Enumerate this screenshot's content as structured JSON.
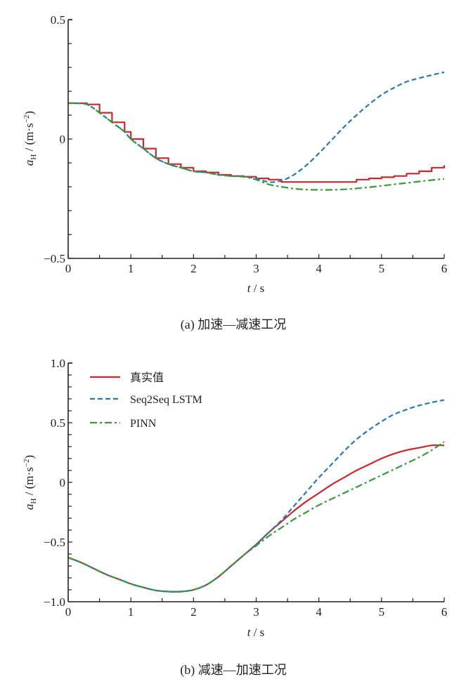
{
  "colors": {
    "true_value": "#c8282e",
    "seq2seq": "#2a78b0",
    "pinn": "#3a9a3a",
    "axis": "#231f20"
  },
  "legend": [
    "真实值",
    "Seq2Seq LSTM",
    "PINN"
  ],
  "chart_data": [
    {
      "type": "line",
      "caption": "(a)  加速—减速工况",
      "xlabel_var": "t",
      "xlabel_unit": " / s",
      "ylabel_var": "a",
      "ylabel_sub": "H",
      "ylabel_unit": " / (m·s",
      "ylabel_exp": "−2",
      "ylabel_close": ")",
      "xlim": [
        0,
        6
      ],
      "ylim": [
        -0.5,
        0.5
      ],
      "xticks": [
        0,
        1,
        2,
        3,
        4,
        5,
        6
      ],
      "xtick_labels": [
        "0",
        "1",
        "2",
        "3",
        "4",
        "5",
        "6"
      ],
      "yticks": [
        -0.5,
        0,
        0.5
      ],
      "ytick_labels": [
        "−0.5",
        "0",
        "0.5"
      ],
      "y_minor_step": 0.1,
      "x_minor_step": 0.5,
      "grid": false,
      "series": [
        {
          "name": "真实值",
          "style": "solid",
          "x": [
            0,
            0.1,
            0.3,
            0.5,
            0.7,
            0.9,
            1.0,
            1.2,
            1.4,
            1.6,
            1.8,
            2.0,
            2.2,
            2.4,
            2.6,
            2.8,
            3.0,
            3.2,
            3.4,
            3.6,
            3.8,
            4.0,
            4.2,
            4.4,
            4.6,
            4.8,
            5.0,
            5.2,
            5.4,
            5.6,
            5.8,
            6.0
          ],
          "y": [
            0.15,
            0.15,
            0.145,
            0.11,
            0.07,
            0.03,
            0.0,
            -0.04,
            -0.08,
            -0.105,
            -0.12,
            -0.135,
            -0.14,
            -0.15,
            -0.155,
            -0.158,
            -0.165,
            -0.17,
            -0.18,
            -0.18,
            -0.18,
            -0.18,
            -0.18,
            -0.18,
            -0.17,
            -0.165,
            -0.16,
            -0.155,
            -0.145,
            -0.135,
            -0.12,
            -0.11
          ]
        },
        {
          "name": "Seq2Seq LSTM",
          "style": "dashed",
          "x": [
            0,
            0.1,
            0.3,
            0.5,
            0.7,
            0.9,
            1.0,
            1.2,
            1.4,
            1.6,
            1.8,
            2.0,
            2.2,
            2.4,
            2.6,
            2.8,
            3.0,
            3.2,
            3.4,
            3.6,
            3.8,
            4.0,
            4.2,
            4.4,
            4.6,
            4.8,
            5.0,
            5.2,
            5.4,
            5.6,
            5.8,
            6.0
          ],
          "y": [
            0.15,
            0.15,
            0.145,
            0.11,
            0.07,
            0.03,
            0.0,
            -0.04,
            -0.08,
            -0.105,
            -0.12,
            -0.135,
            -0.14,
            -0.15,
            -0.155,
            -0.158,
            -0.165,
            -0.18,
            -0.175,
            -0.15,
            -0.11,
            -0.06,
            -0.005,
            0.05,
            0.1,
            0.145,
            0.185,
            0.215,
            0.24,
            0.255,
            0.268,
            0.28
          ]
        },
        {
          "name": "PINN",
          "style": "dashdot",
          "x": [
            0,
            0.1,
            0.3,
            0.5,
            0.7,
            0.9,
            1.0,
            1.2,
            1.4,
            1.6,
            1.8,
            2.0,
            2.2,
            2.4,
            2.6,
            2.8,
            3.0,
            3.2,
            3.4,
            3.6,
            3.8,
            4.0,
            4.2,
            4.4,
            4.6,
            4.8,
            5.0,
            5.2,
            5.4,
            5.6,
            5.8,
            6.0
          ],
          "y": [
            0.15,
            0.15,
            0.145,
            0.11,
            0.07,
            0.03,
            0.0,
            -0.04,
            -0.08,
            -0.105,
            -0.12,
            -0.135,
            -0.14,
            -0.15,
            -0.155,
            -0.158,
            -0.17,
            -0.19,
            -0.2,
            -0.208,
            -0.212,
            -0.213,
            -0.213,
            -0.211,
            -0.207,
            -0.202,
            -0.196,
            -0.19,
            -0.184,
            -0.178,
            -0.172,
            -0.167
          ]
        }
      ]
    },
    {
      "type": "line",
      "caption": "(b)  减速—加速工况",
      "xlabel_var": "t",
      "xlabel_unit": " / s",
      "ylabel_var": "a",
      "ylabel_sub": "H",
      "ylabel_unit": " / (m·s",
      "ylabel_exp": "−2",
      "ylabel_close": ")",
      "xlim": [
        0,
        6
      ],
      "ylim": [
        -1.0,
        1.0
      ],
      "xticks": [
        0,
        1,
        2,
        3,
        4,
        5,
        6
      ],
      "xtick_labels": [
        "0",
        "1",
        "2",
        "3",
        "4",
        "5",
        "6"
      ],
      "yticks": [
        -1.0,
        -0.5,
        0,
        0.5,
        1.0
      ],
      "ytick_labels": [
        "−1.0",
        "−0.5",
        "0",
        "0.5",
        "1.0"
      ],
      "y_minor_step": 0.1,
      "x_minor_step": 0.5,
      "grid": false,
      "legend_position": "top-left",
      "series": [
        {
          "name": "真实值",
          "style": "solid",
          "x": [
            0,
            0.2,
            0.4,
            0.6,
            0.8,
            1.0,
            1.2,
            1.4,
            1.6,
            1.8,
            2.0,
            2.2,
            2.4,
            2.6,
            2.8,
            3.0,
            3.2,
            3.4,
            3.6,
            3.8,
            4.0,
            4.2,
            4.4,
            4.6,
            4.8,
            5.0,
            5.2,
            5.4,
            5.6,
            5.8,
            6.0
          ],
          "y": [
            -0.63,
            -0.67,
            -0.72,
            -0.77,
            -0.81,
            -0.85,
            -0.88,
            -0.905,
            -0.915,
            -0.915,
            -0.9,
            -0.86,
            -0.79,
            -0.7,
            -0.61,
            -0.52,
            -0.42,
            -0.33,
            -0.24,
            -0.16,
            -0.09,
            -0.02,
            0.04,
            0.1,
            0.15,
            0.2,
            0.24,
            0.27,
            0.29,
            0.31,
            0.31
          ]
        },
        {
          "name": "Seq2Seq LSTM",
          "style": "dashed",
          "x": [
            0,
            0.2,
            0.4,
            0.6,
            0.8,
            1.0,
            1.2,
            1.4,
            1.6,
            1.8,
            2.0,
            2.2,
            2.4,
            2.6,
            2.8,
            3.0,
            3.2,
            3.4,
            3.6,
            3.8,
            4.0,
            4.2,
            4.4,
            4.6,
            4.8,
            5.0,
            5.2,
            5.4,
            5.6,
            5.8,
            6.0
          ],
          "y": [
            -0.63,
            -0.67,
            -0.72,
            -0.77,
            -0.81,
            -0.85,
            -0.88,
            -0.905,
            -0.915,
            -0.915,
            -0.9,
            -0.86,
            -0.79,
            -0.7,
            -0.61,
            -0.52,
            -0.42,
            -0.32,
            -0.2,
            -0.08,
            0.04,
            0.15,
            0.26,
            0.36,
            0.44,
            0.51,
            0.57,
            0.61,
            0.645,
            0.67,
            0.69
          ]
        },
        {
          "name": "PINN",
          "style": "dashdot",
          "x": [
            0,
            0.2,
            0.4,
            0.6,
            0.8,
            1.0,
            1.2,
            1.4,
            1.6,
            1.8,
            2.0,
            2.2,
            2.4,
            2.6,
            2.8,
            3.0,
            3.2,
            3.4,
            3.6,
            3.8,
            4.0,
            4.2,
            4.4,
            4.6,
            4.8,
            5.0,
            5.2,
            5.4,
            5.6,
            5.8,
            6.0
          ],
          "y": [
            -0.63,
            -0.67,
            -0.72,
            -0.77,
            -0.81,
            -0.85,
            -0.88,
            -0.905,
            -0.915,
            -0.915,
            -0.9,
            -0.86,
            -0.79,
            -0.7,
            -0.61,
            -0.53,
            -0.45,
            -0.38,
            -0.31,
            -0.25,
            -0.19,
            -0.14,
            -0.09,
            -0.04,
            0.01,
            0.06,
            0.11,
            0.16,
            0.21,
            0.27,
            0.34
          ]
        }
      ]
    }
  ]
}
